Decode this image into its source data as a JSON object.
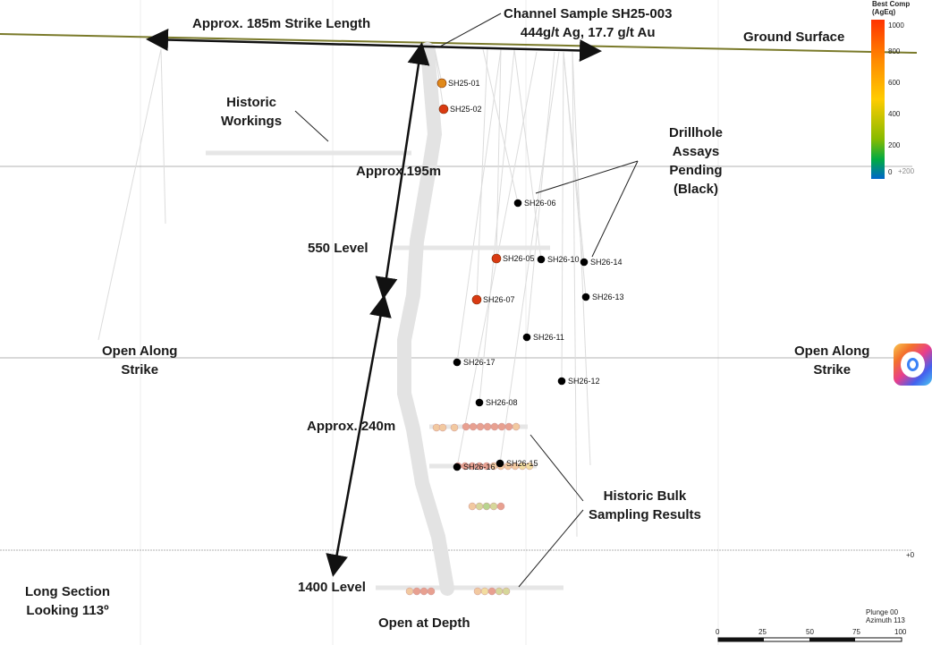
{
  "labels": {
    "strike_length": "Approx. 185m Strike Length",
    "channel_sample": "Channel Sample SH25-003\n444g/t Ag, 17.7 g/t Au",
    "ground_surface": "Ground Surface",
    "historic_workings": "Historic\nWorkings",
    "approx_195": "Approx.195m",
    "drillhole_pending": "Drillhole\nAssays\nPending\n(Black)",
    "level_550": "550 Level",
    "open_strike_left": "Open Along\nStrike",
    "open_strike_right": "Open Along\nStrike",
    "approx_240": "Approx. 240m",
    "historic_bulk": "Historic Bulk\nSampling Results",
    "level_1400": "1400 Level",
    "long_section": "Long Section\nLooking 113º",
    "open_depth": "Open at Depth"
  },
  "legend": {
    "title": "Best Comp\n(AgEq)",
    "ticks": [
      "1000",
      "800",
      "600",
      "400",
      "200",
      "0"
    ],
    "extra": "+200",
    "colors": [
      "#ff3300",
      "#ff8800",
      "#ffcc00",
      "#99cc00",
      "#00aa44",
      "#0066cc"
    ]
  },
  "plunge": "Plunge 00\nAzimuth 113",
  "scale_bar": {
    "ticks": [
      "0",
      "25",
      "50",
      "75",
      "100"
    ]
  },
  "depth_marker": "+0",
  "drillholes": [
    {
      "id": "SH25-01",
      "color": "#e0891a"
    },
    {
      "id": "SH25-02",
      "color": "#d93a12"
    },
    {
      "id": "SH26-06",
      "color": "#000000"
    },
    {
      "id": "SH26-05",
      "color": "#d93a12"
    },
    {
      "id": "SH26-10",
      "color": "#000000"
    },
    {
      "id": "SH26-14",
      "color": "#000000"
    },
    {
      "id": "SH26-13",
      "color": "#000000"
    },
    {
      "id": "SH26-07",
      "color": "#d93a12"
    },
    {
      "id": "SH26-11",
      "color": "#000000"
    },
    {
      "id": "SH26-17",
      "color": "#000000"
    },
    {
      "id": "SH26-12",
      "color": "#000000"
    },
    {
      "id": "SH26-08",
      "color": "#000000"
    },
    {
      "id": "SH26-15",
      "color": "#000000"
    },
    {
      "id": "SH26-16",
      "color": "#000000"
    }
  ]
}
